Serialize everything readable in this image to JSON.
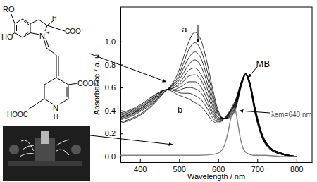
{
  "chart_data": {
    "type": "line",
    "x": [
      350,
      370,
      390,
      410,
      430,
      450,
      465,
      480,
      495,
      510,
      525,
      540,
      555,
      570,
      585,
      600,
      615,
      630,
      645,
      660,
      670,
      680,
      695,
      710,
      730,
      760,
      800
    ],
    "series": [
      {
        "color": "#000000",
        "values": [
          0.29,
          0.31,
          0.34,
          0.38,
          0.44,
          0.51,
          0.57,
          0.62,
          0.71,
          0.85,
          1.0,
          1.08,
          1.02,
          0.84,
          0.6,
          0.4,
          0.33,
          0.34,
          0.42,
          0.62,
          0.71,
          0.62,
          0.36,
          0.18,
          0.07,
          0.02,
          0.0
        ]
      },
      {
        "color": "#000000",
        "values": [
          0.3,
          0.32,
          0.35,
          0.39,
          0.45,
          0.52,
          0.57,
          0.61,
          0.68,
          0.8,
          0.93,
          0.99,
          0.93,
          0.77,
          0.56,
          0.38,
          0.33,
          0.35,
          0.43,
          0.63,
          0.71,
          0.63,
          0.37,
          0.19,
          0.07,
          0.02,
          0.0
        ]
      },
      {
        "color": "#000000",
        "values": [
          0.32,
          0.34,
          0.37,
          0.41,
          0.46,
          0.52,
          0.57,
          0.61,
          0.66,
          0.76,
          0.86,
          0.91,
          0.86,
          0.71,
          0.52,
          0.37,
          0.33,
          0.36,
          0.44,
          0.63,
          0.71,
          0.63,
          0.38,
          0.19,
          0.08,
          0.02,
          0.0
        ]
      },
      {
        "color": "#000000",
        "values": [
          0.33,
          0.35,
          0.38,
          0.42,
          0.47,
          0.53,
          0.57,
          0.6,
          0.64,
          0.72,
          0.8,
          0.84,
          0.79,
          0.66,
          0.48,
          0.36,
          0.33,
          0.36,
          0.45,
          0.64,
          0.71,
          0.64,
          0.38,
          0.2,
          0.08,
          0.02,
          0.0
        ]
      },
      {
        "color": "#000000",
        "values": [
          0.34,
          0.36,
          0.39,
          0.43,
          0.48,
          0.54,
          0.58,
          0.59,
          0.62,
          0.68,
          0.75,
          0.77,
          0.72,
          0.61,
          0.45,
          0.34,
          0.33,
          0.37,
          0.46,
          0.64,
          0.72,
          0.64,
          0.39,
          0.2,
          0.08,
          0.03,
          0.0
        ]
      },
      {
        "color": "#000000",
        "values": [
          0.34,
          0.36,
          0.39,
          0.44,
          0.49,
          0.54,
          0.58,
          0.59,
          0.61,
          0.65,
          0.7,
          0.71,
          0.67,
          0.56,
          0.42,
          0.33,
          0.33,
          0.38,
          0.47,
          0.64,
          0.72,
          0.64,
          0.4,
          0.2,
          0.08,
          0.03,
          0.0
        ]
      },
      {
        "color": "#000000",
        "values": [
          0.35,
          0.37,
          0.4,
          0.44,
          0.5,
          0.55,
          0.58,
          0.58,
          0.59,
          0.62,
          0.65,
          0.65,
          0.61,
          0.51,
          0.39,
          0.32,
          0.33,
          0.38,
          0.48,
          0.65,
          0.72,
          0.65,
          0.4,
          0.21,
          0.08,
          0.03,
          0.0
        ]
      },
      {
        "color": "#000000",
        "values": [
          0.36,
          0.38,
          0.41,
          0.45,
          0.5,
          0.55,
          0.58,
          0.58,
          0.57,
          0.59,
          0.6,
          0.59,
          0.56,
          0.47,
          0.37,
          0.31,
          0.33,
          0.39,
          0.48,
          0.65,
          0.72,
          0.65,
          0.41,
          0.21,
          0.09,
          0.03,
          0.0
        ]
      },
      {
        "color": "#000000",
        "values": [
          0.37,
          0.39,
          0.42,
          0.46,
          0.51,
          0.56,
          0.58,
          0.58,
          0.56,
          0.55,
          0.55,
          0.53,
          0.5,
          0.43,
          0.34,
          0.3,
          0.33,
          0.39,
          0.49,
          0.66,
          0.72,
          0.66,
          0.41,
          0.22,
          0.09,
          0.03,
          0.0
        ]
      },
      {
        "color": "#000000",
        "values": [
          0.38,
          0.4,
          0.43,
          0.47,
          0.52,
          0.56,
          0.58,
          0.57,
          0.54,
          0.52,
          0.5,
          0.47,
          0.44,
          0.38,
          0.31,
          0.29,
          0.33,
          0.4,
          0.5,
          0.66,
          0.72,
          0.66,
          0.42,
          0.22,
          0.09,
          0.03,
          0.0
        ]
      },
      {
        "color": "#808080",
        "x": [
          350,
          450,
          550,
          590,
          605,
          615,
          625,
          632,
          638,
          642,
          646,
          651,
          657,
          664,
          673,
          690,
          720,
          760,
          800
        ],
        "values": [
          0.01,
          0.01,
          0.01,
          0.02,
          0.04,
          0.09,
          0.21,
          0.33,
          0.41,
          0.42,
          0.37,
          0.27,
          0.15,
          0.07,
          0.03,
          0.01,
          0.01,
          0.0,
          0.0
        ]
      }
    ],
    "xlabel": "Wavelength / nm",
    "ylabel": "Absorbance / a. u",
    "xlim": [
      350,
      840
    ],
    "ylim": [
      -0.05,
      1.3
    ],
    "xticks": [
      400,
      500,
      600,
      700,
      800
    ],
    "yticks": [
      {
        "value": 0,
        "label": "0.0"
      },
      {
        "value": 0.2,
        "label": "0.2"
      },
      {
        "value": 0.4,
        "label": "0.4"
      },
      {
        "value": 0.6,
        "label": "0.6"
      },
      {
        "value": 0.8,
        "label": "0.8"
      },
      {
        "value": 1,
        "label": "1.0"
      }
    ],
    "annotations": [
      {
        "text": "a",
        "x": 507,
        "y": 1.08
      },
      {
        "text": "MB",
        "x": 697,
        "y": 0.78
      },
      {
        "text": "b",
        "x": 496,
        "y": 0.38
      },
      {
        "text": "λem=640 nm",
        "x": 735,
        "y": 0.34
      }
    ]
  },
  "structure": {
    "labels": [
      "RO",
      "HO",
      "N",
      "+",
      "H",
      "COO⁻",
      "HOOC",
      "N",
      "H",
      "COOH"
    ]
  }
}
